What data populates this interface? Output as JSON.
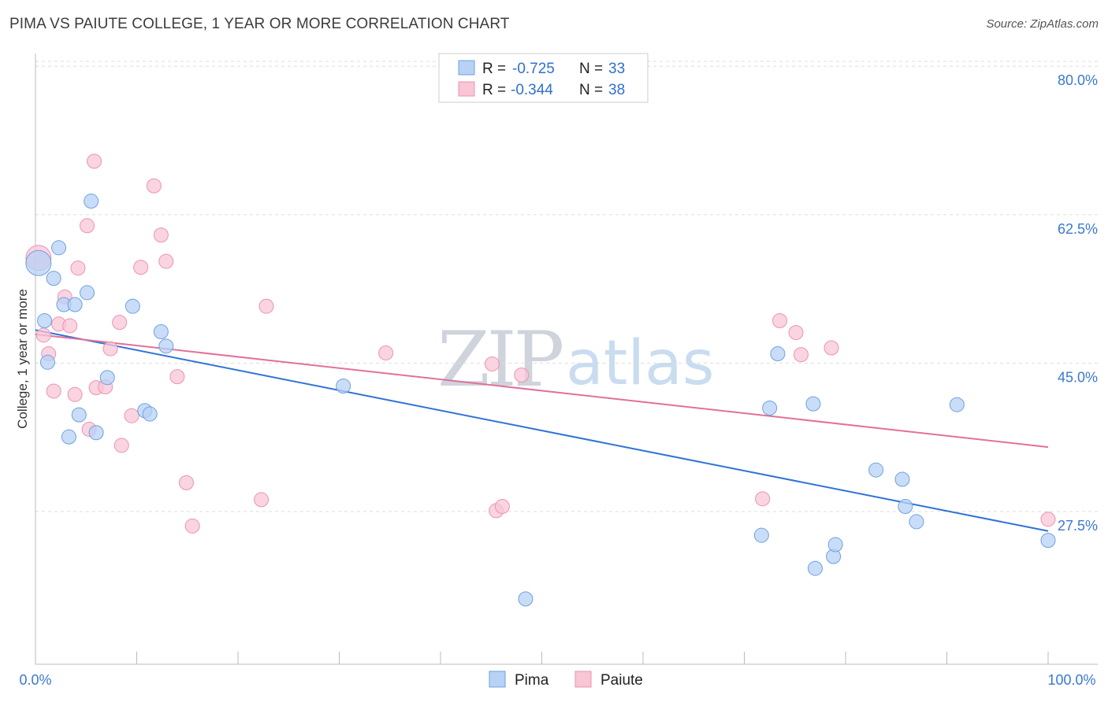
{
  "title": "PIMA VS PAIUTE COLLEGE, 1 YEAR OR MORE CORRELATION CHART",
  "source": "Source: ZipAtlas.com",
  "watermark": {
    "zip": "ZIP",
    "atlas": "atlas"
  },
  "colors": {
    "pima_fill": "#b7d2f5",
    "pima_stroke": "#6fa0e0",
    "pima_line": "#2f73d6",
    "paiute_fill": "#f8c6d5",
    "paiute_stroke": "#ec93b0",
    "paiute_line": "#e3709a",
    "grid": "#dddddd",
    "axis_text": "#3a78d0"
  },
  "legend": {
    "rows": [
      {
        "r_label": "R =",
        "r_value": "-0.725",
        "n_label": "N =",
        "n_value": "33"
      },
      {
        "r_label": "R =",
        "r_value": "-0.344",
        "n_label": "N =",
        "n_value": "38"
      }
    ]
  },
  "bottom_legend": {
    "pima": "Pima",
    "paiute": "Paiute"
  },
  "chart_data": {
    "type": "scatter",
    "title": "PIMA VS PAIUTE COLLEGE, 1 YEAR OR MORE CORRELATION CHART",
    "ylabel": "College, 1 year or more",
    "xlabel": "",
    "xlim": [
      0,
      100
    ],
    "ylim": [
      9.5,
      81.5
    ],
    "x_tick_labels": [
      "0.0%",
      "100.0%"
    ],
    "y_ticks": [
      27.5,
      45.0,
      62.5,
      80.0
    ],
    "y_tick_labels": [
      "27.5%",
      "45.0%",
      "62.5%",
      "80.0%"
    ],
    "series": [
      {
        "name": "Pima",
        "points": [
          [
            0.3,
            56.8
          ],
          [
            0.9,
            50.0
          ],
          [
            1.2,
            45.1
          ],
          [
            1.8,
            55.0
          ],
          [
            2.3,
            58.6
          ],
          [
            2.8,
            51.9
          ],
          [
            3.3,
            36.3
          ],
          [
            3.9,
            51.9
          ],
          [
            4.3,
            38.9
          ],
          [
            5.1,
            53.3
          ],
          [
            5.5,
            64.1
          ],
          [
            6.0,
            36.8
          ],
          [
            7.1,
            43.3
          ],
          [
            9.6,
            51.7
          ],
          [
            10.8,
            39.4
          ],
          [
            11.3,
            39.0
          ],
          [
            12.4,
            48.7
          ],
          [
            12.9,
            47.0
          ],
          [
            30.4,
            42.3
          ],
          [
            48.4,
            17.2
          ],
          [
            71.7,
            24.7
          ],
          [
            72.5,
            39.7
          ],
          [
            73.3,
            46.1
          ],
          [
            76.8,
            40.2
          ],
          [
            77.0,
            20.8
          ],
          [
            78.8,
            22.2
          ],
          [
            79.0,
            23.6
          ],
          [
            83.0,
            32.4
          ],
          [
            85.6,
            31.3
          ],
          [
            85.9,
            28.1
          ],
          [
            87.0,
            26.3
          ],
          [
            91.0,
            40.1
          ],
          [
            100.0,
            24.1
          ]
        ],
        "trend": {
          "x": [
            0,
            100
          ],
          "y": [
            48.9,
            25.2
          ]
        }
      },
      {
        "name": "Paiute",
        "points": [
          [
            0.3,
            57.4
          ],
          [
            0.8,
            48.3
          ],
          [
            1.3,
            46.1
          ],
          [
            1.8,
            41.7
          ],
          [
            2.3,
            49.6
          ],
          [
            2.9,
            52.8
          ],
          [
            3.4,
            49.4
          ],
          [
            3.9,
            41.3
          ],
          [
            4.2,
            56.2
          ],
          [
            5.1,
            61.2
          ],
          [
            5.3,
            37.2
          ],
          [
            5.8,
            68.8
          ],
          [
            6.0,
            42.1
          ],
          [
            6.9,
            42.2
          ],
          [
            7.4,
            46.7
          ],
          [
            8.3,
            49.8
          ],
          [
            8.5,
            35.3
          ],
          [
            9.5,
            38.8
          ],
          [
            10.4,
            56.3
          ],
          [
            11.7,
            65.9
          ],
          [
            12.4,
            60.1
          ],
          [
            12.9,
            57.0
          ],
          [
            14.0,
            43.4
          ],
          [
            14.9,
            30.9
          ],
          [
            15.5,
            25.8
          ],
          [
            22.3,
            28.9
          ],
          [
            22.8,
            51.7
          ],
          [
            34.6,
            46.2
          ],
          [
            45.1,
            44.9
          ],
          [
            45.5,
            27.6
          ],
          [
            46.1,
            28.1
          ],
          [
            48.0,
            43.6
          ],
          [
            71.8,
            29.0
          ],
          [
            73.5,
            50.0
          ],
          [
            75.1,
            48.6
          ],
          [
            75.6,
            46.0
          ],
          [
            78.6,
            46.8
          ],
          [
            100.0,
            26.6
          ]
        ],
        "trend": {
          "x": [
            0,
            100
          ],
          "y": [
            48.4,
            35.1
          ]
        }
      }
    ]
  }
}
